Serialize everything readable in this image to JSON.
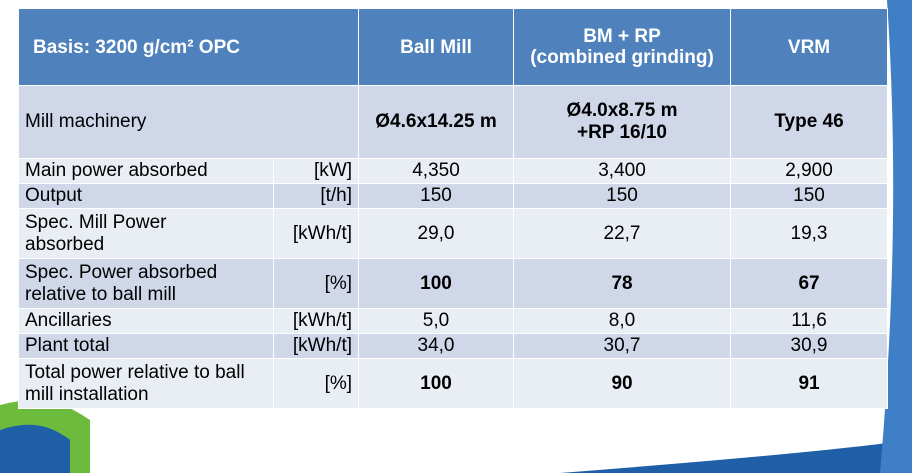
{
  "header": {
    "basis": "Basis: 3200 g/cm² OPC",
    "col_ball_mill": "Ball Mill",
    "col_bm_rp_line1": "BM + RP",
    "col_bm_rp_line2": "(combined grinding)",
    "col_vrm": "VRM"
  },
  "rows": [
    {
      "label": "Mill machinery",
      "unit": "",
      "ball_mill": "Ø4.6x14.25 m",
      "bm_rp_line1": "Ø4.0x8.75 m",
      "bm_rp_line2": "+RP 16/10",
      "vrm": "Type 46"
    },
    {
      "label": "Main power absorbed",
      "unit": "[kW]",
      "ball_mill": "4,350",
      "bm_rp": "3,400",
      "vrm": "2,900"
    },
    {
      "label": "Output",
      "unit": "[t/h]",
      "ball_mill": "150",
      "bm_rp": "150",
      "vrm": "150"
    },
    {
      "label_line1": "Spec. Mill Power",
      "label_line2": "absorbed",
      "unit": "[kWh/t]",
      "ball_mill": "29,0",
      "bm_rp": "22,7",
      "vrm": "19,3"
    },
    {
      "label_line1": "Spec. Power absorbed",
      "label_line2": "relative to ball mill",
      "unit": "[%]",
      "ball_mill": "100",
      "bm_rp": "78",
      "vrm": "67"
    },
    {
      "label": "Ancillaries",
      "unit": "[kWh/t]",
      "ball_mill": "5,0",
      "bm_rp": "8,0",
      "vrm": "11,6"
    },
    {
      "label": "Plant total",
      "unit": "[kWh/t]",
      "ball_mill": "34,0",
      "bm_rp": "30,7",
      "vrm": "30,9"
    },
    {
      "label_line1": "Total power relative to ball",
      "label_line2": "mill installation",
      "unit": "[%]",
      "ball_mill": "100",
      "bm_rp": "90",
      "vrm": "91"
    }
  ],
  "colors": {
    "header_bg": "#4f81bd",
    "row_dark": "#cfd7e8",
    "row_light": "#e9edf4",
    "swoosh_blue": "#1f5fa8",
    "swoosh_green": "#6dbb3c"
  }
}
